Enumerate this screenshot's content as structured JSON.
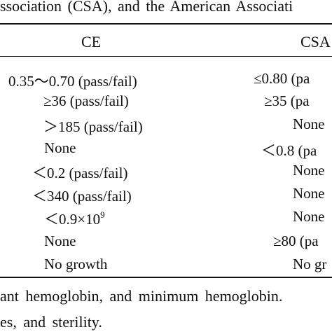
{
  "caption_top": "ssociation (CSA), and the American Associati",
  "table": {
    "headers": {
      "ce": "CE",
      "csa": "CSA"
    },
    "rows": [
      {
        "ce": "0.35～0.70 (pass/fail)",
        "csa": "≤0.80 (pa"
      },
      {
        "ce": "≥36 (pass/fail)",
        "csa": "≥35 (pa"
      },
      {
        "ce": "＞185 (pass/fail)",
        "csa": "None"
      },
      {
        "ce": "None",
        "csa": "＜0.8 (pa"
      },
      {
        "ce": "＜0.2 (pass/fail)",
        "csa": "None"
      },
      {
        "ce": "＜340 (pass/fail)",
        "csa": "None"
      },
      {
        "ce": "＜0.9×10",
        "ce_sup": "9",
        "csa": "None"
      },
      {
        "ce": "None",
        "csa": "≥80 (pa"
      },
      {
        "ce": "No growth",
        "csa": "No gr"
      }
    ]
  },
  "footnote": {
    "line1": "ant hemoglobin, and minimum hemoglobin.",
    "line2": "es, and sterility."
  }
}
